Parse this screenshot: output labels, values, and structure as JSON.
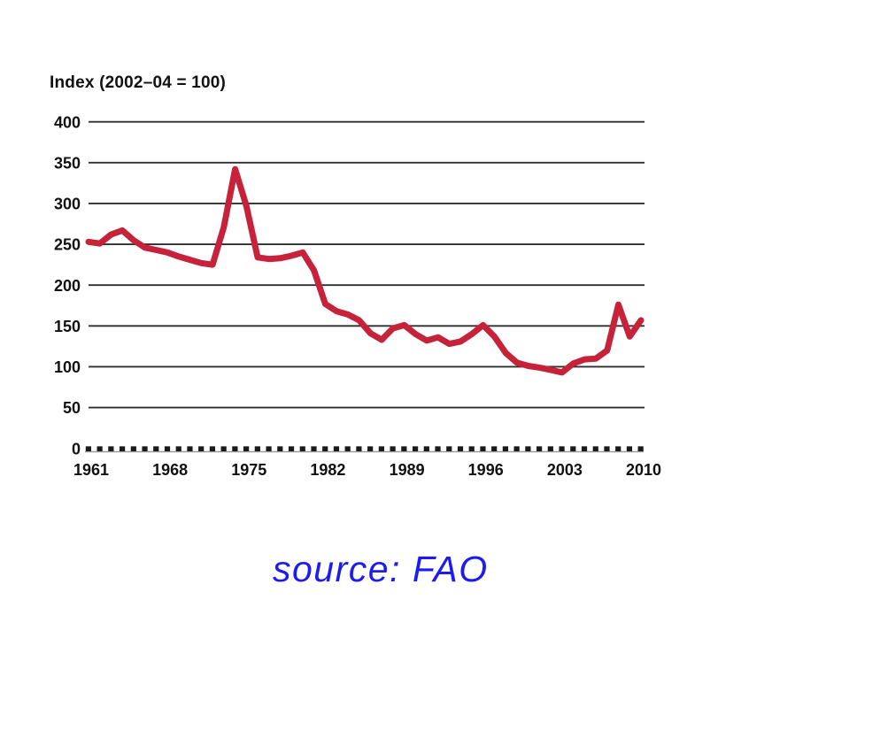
{
  "chart_data": {
    "type": "line",
    "title": "Index (2002–04 = 100)",
    "x": [
      1961,
      1962,
      1963,
      1964,
      1965,
      1966,
      1967,
      1968,
      1969,
      1970,
      1971,
      1972,
      1973,
      1974,
      1975,
      1976,
      1977,
      1978,
      1979,
      1980,
      1981,
      1982,
      1983,
      1984,
      1985,
      1986,
      1987,
      1988,
      1989,
      1990,
      1991,
      1992,
      1993,
      1994,
      1995,
      1996,
      1997,
      1998,
      1999,
      2000,
      2001,
      2002,
      2003,
      2004,
      2005,
      2006,
      2007,
      2008,
      2009,
      2010
    ],
    "values": [
      253,
      251,
      262,
      267,
      255,
      246,
      243,
      240,
      235,
      231,
      227,
      225,
      271,
      342,
      297,
      234,
      232,
      233,
      236,
      240,
      218,
      177,
      168,
      164,
      157,
      141,
      133,
      147,
      151,
      140,
      132,
      136,
      128,
      131,
      140,
      151,
      137,
      117,
      105,
      101,
      99,
      96,
      93,
      104,
      109,
      110,
      120,
      176,
      137,
      157
    ],
    "xlabel": "",
    "ylabel": "Index (2002–04 = 100)",
    "ylim": [
      0,
      400
    ],
    "y_ticks": [
      0,
      50,
      100,
      150,
      200,
      250,
      300,
      350,
      400
    ],
    "x_tick_labels": [
      1961,
      1968,
      1975,
      1982,
      1989,
      1996,
      2003,
      2010
    ],
    "grid": true,
    "legend_position": "none",
    "line_color": "#c6223a",
    "grid_color": "#2f2f2f",
    "axis_tick_color": "#1a1a1a",
    "baseline_color": "#9a9a9a",
    "label_color": "#111111"
  },
  "source": {
    "text": "source: FAO",
    "color": "#1b1bf2"
  }
}
